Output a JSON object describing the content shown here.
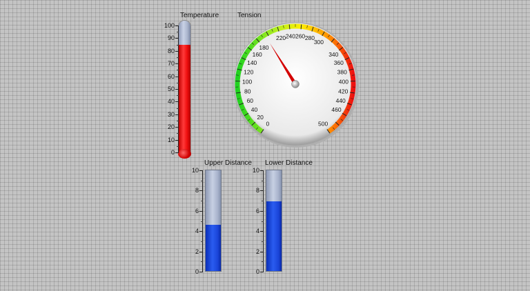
{
  "temperature": {
    "label": "Temperature",
    "min": 0,
    "max": 100,
    "value": 85,
    "ticks": [
      "100",
      "90",
      "80",
      "70",
      "60",
      "50",
      "40",
      "30",
      "20",
      "10",
      "0"
    ],
    "fill_color": "#ff1a1a"
  },
  "tension": {
    "label": "Tension",
    "min": 0,
    "max": 500,
    "value": 195,
    "ticks": [
      "0",
      "20",
      "40",
      "60",
      "80",
      "100",
      "120",
      "140",
      "160",
      "180",
      "220",
      "240",
      "260",
      "280",
      "300",
      "340",
      "360",
      "380",
      "400",
      "420",
      "440",
      "460",
      "500"
    ],
    "needle_color": "#d40000"
  },
  "upper_distance": {
    "label": "Upper Distance",
    "min": 0,
    "max": 10,
    "value": 4.6,
    "ticks": [
      "10",
      "8",
      "6",
      "4",
      "2",
      "0"
    ],
    "fill_color": "#1a44d8"
  },
  "lower_distance": {
    "label": "Lower Distance",
    "min": 0,
    "max": 10,
    "value": 6.9,
    "ticks": [
      "10",
      "8",
      "6",
      "4",
      "2",
      "0"
    ],
    "fill_color": "#1a44d8"
  }
}
